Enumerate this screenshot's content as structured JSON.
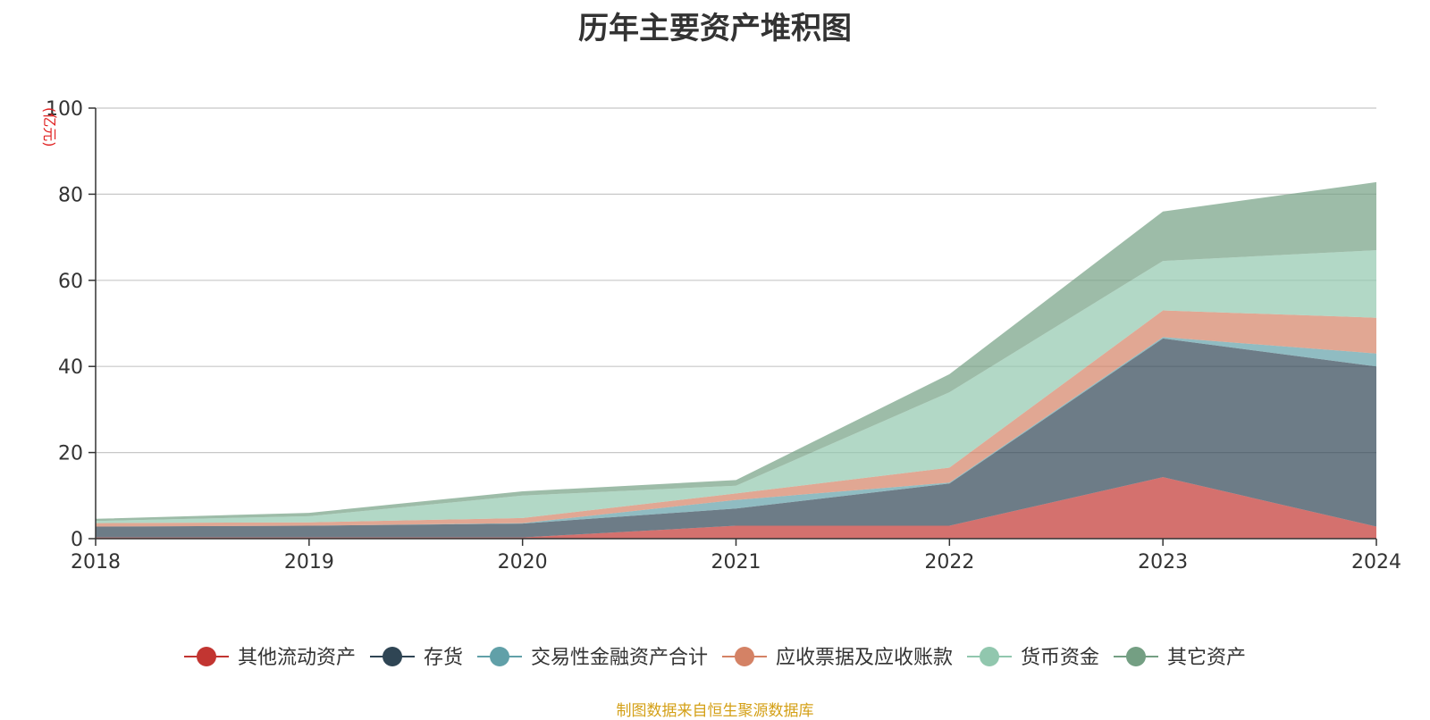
{
  "chart_data": {
    "type": "area",
    "stacked": true,
    "title": "历年主要资产堆积图",
    "unit": "(亿元)",
    "x": [
      "2018",
      "2019",
      "2020",
      "2021",
      "2022",
      "2023",
      "2024"
    ],
    "ylim": [
      0,
      100
    ],
    "yticks": [
      "0",
      "20",
      "40",
      "60",
      "80",
      "100"
    ],
    "grid": true,
    "legend_position": "bottom",
    "series": [
      {
        "name": "其他流动资产",
        "color": "#c23531",
        "values": [
          0.3,
          0.3,
          0.3,
          3.0,
          3.0,
          14.3,
          2.8
        ]
      },
      {
        "name": "存货",
        "color": "#2f4554",
        "values": [
          2.5,
          2.7,
          3.2,
          4.0,
          9.8,
          32.2,
          37.2
        ]
      },
      {
        "name": "交易性金融资产合计",
        "color": "#61a0a8",
        "values": [
          0.0,
          0.0,
          0.1,
          2.0,
          0.2,
          0.3,
          3.0
        ]
      },
      {
        "name": "应收票据及应收账款",
        "color": "#d48265",
        "values": [
          0.8,
          0.8,
          1.2,
          1.5,
          3.5,
          6.2,
          8.3
        ]
      },
      {
        "name": "货币资金",
        "color": "#91c7ae",
        "values": [
          0.5,
          1.4,
          5.2,
          1.8,
          17.5,
          11.5,
          15.7
        ]
      },
      {
        "name": "其它资产",
        "color": "#749f83",
        "values": [
          0.5,
          0.8,
          1.0,
          1.3,
          4.2,
          11.5,
          15.8
        ]
      }
    ]
  },
  "source_note": "制图数据来自恒生聚源数据库"
}
